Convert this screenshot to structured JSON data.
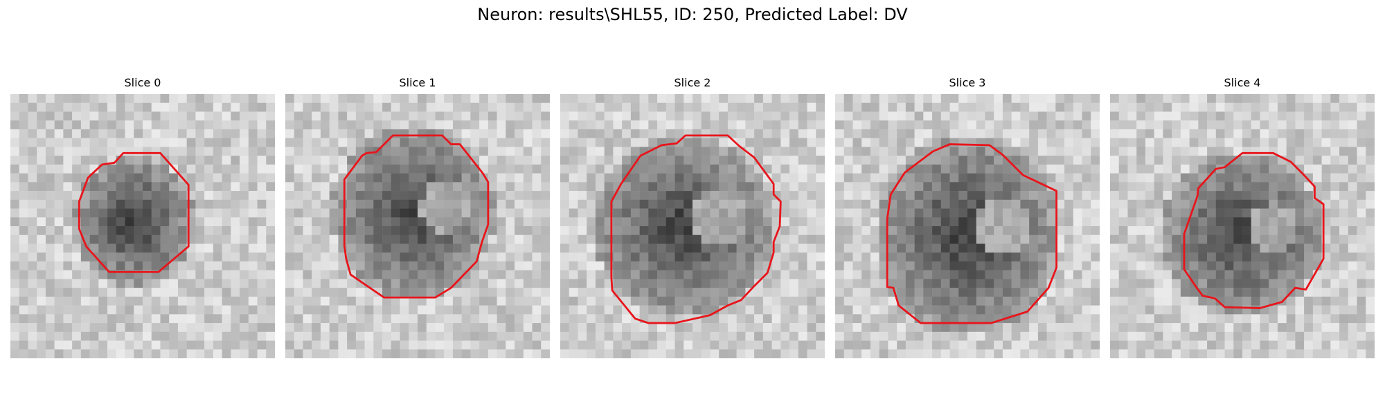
{
  "figure": {
    "title": "Neuron: results\\SHL55, ID: 250, Predicted Label: DV"
  },
  "panels": [
    {
      "title": "Slice 0"
    },
    {
      "title": "Slice 1"
    },
    {
      "title": "Slice 2"
    },
    {
      "title": "Slice 3"
    },
    {
      "title": "Slice 4"
    }
  ],
  "colors": {
    "background": "#ffffff",
    "contour": "#e8151b",
    "colormap": "grayscale"
  }
}
